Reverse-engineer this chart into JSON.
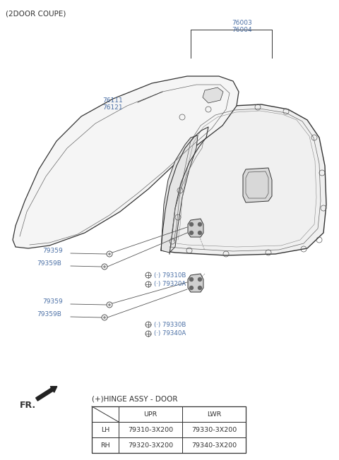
{
  "bg_color": "#ffffff",
  "line_color": "#333333",
  "label_color": "#4a6fa5",
  "title": "(2DOOR COUPE)",
  "legend_title": "(+)HINGE ASSY - DOOR",
  "table_data": [
    [
      "",
      "UPR",
      "LWR"
    ],
    [
      "LH",
      "79310-3X200",
      "79330-3X200"
    ],
    [
      "RH",
      "79320-3X200",
      "79340-3X200"
    ]
  ],
  "part_labels": {
    "76003_76004": "76003\n76004",
    "76111_76121": "76111\n76121",
    "79359_u1": "79359",
    "79359B_u1": "79359B",
    "79310B": "(·) 79310B",
    "79320A": "(·) 79320A",
    "79359_l1": "79359",
    "79359B_l1": "79359B",
    "79330B": "(·) 79330B",
    "79340A": "(·) 79340A"
  }
}
